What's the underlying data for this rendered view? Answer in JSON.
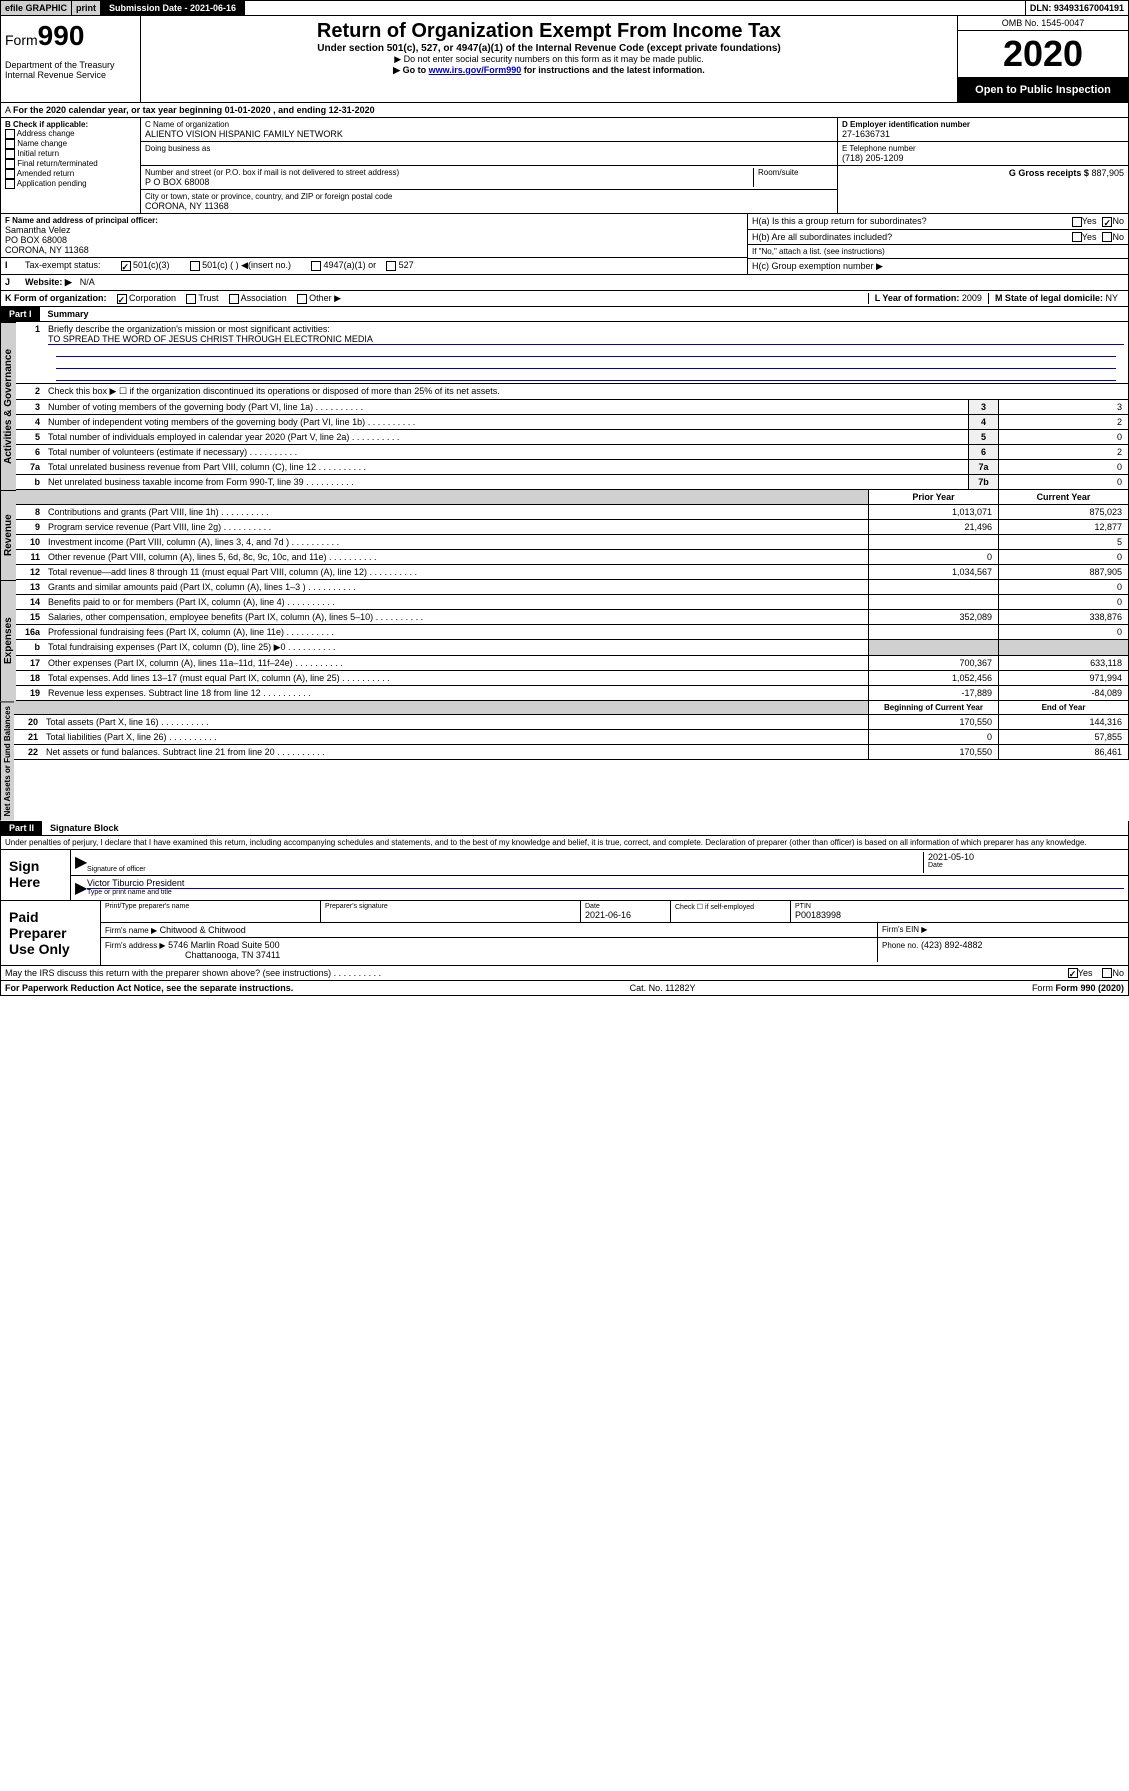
{
  "header": {
    "efile": "efile GRAPHIC",
    "print": "print",
    "submission_label": "Submission Date - 2021-06-16",
    "dln": "DLN: 93493167004191"
  },
  "title_box": {
    "form_label": "Form",
    "form_no": "990",
    "dept": "Department of the Treasury Internal Revenue Service",
    "main_title": "Return of Organization Exempt From Income Tax",
    "subtitle": "Under section 501(c), 527, or 4947(a)(1) of the Internal Revenue Code (except private foundations)",
    "arrow1": "▶ Do not enter social security numbers on this form as it may be made public.",
    "arrow2_pre": "▶ Go to ",
    "arrow2_link": "www.irs.gov/Form990",
    "arrow2_post": " for instructions and the latest information.",
    "omb": "OMB No. 1545-0047",
    "year": "2020",
    "open_public": "Open to Public Inspection"
  },
  "line_a": "For the 2020 calendar year, or tax year beginning 01-01-2020   , and ending 12-31-2020",
  "section_b": {
    "header": "B Check if applicable:",
    "items": [
      "Address change",
      "Name change",
      "Initial return",
      "Final return/terminated",
      "Amended return",
      "Application pending"
    ]
  },
  "section_c": {
    "name_label": "C Name of organization",
    "name": "ALIENTO VISION HISPANIC FAMILY NETWORK",
    "dba_label": "Doing business as",
    "addr_label": "Number and street (or P.O. box if mail is not delivered to street address)",
    "room_label": "Room/suite",
    "addr": "P O BOX 68008",
    "city_label": "City or town, state or province, country, and ZIP or foreign postal code",
    "city": "CORONA, NY  11368"
  },
  "section_d": {
    "label": "D Employer identification number",
    "ein": "27-1636731"
  },
  "section_e": {
    "label": "E Telephone number",
    "phone": "(718) 205-1209"
  },
  "section_g": {
    "label": "G Gross receipts $",
    "amount": "887,905"
  },
  "section_f": {
    "label": "F  Name and address of principal officer:",
    "name": "Samantha Velez",
    "addr1": "PO BOX 68008",
    "addr2": "CORONA, NY  11368"
  },
  "section_h": {
    "ha": "H(a)  Is this a group return for subordinates?",
    "hb": "H(b)  Are all subordinates included?",
    "hb_note": "If \"No,\" attach a list. (see instructions)",
    "hc": "H(c)  Group exemption number ▶",
    "yes": "Yes",
    "no": "No"
  },
  "section_i": {
    "label": "Tax-exempt status:",
    "opts": [
      "501(c)(3)",
      "501(c) (  ) ◀(insert no.)",
      "4947(a)(1) or",
      "527"
    ]
  },
  "section_j": {
    "label": "Website: ▶",
    "val": "N/A"
  },
  "section_k": {
    "label": "K Form of organization:",
    "opts": [
      "Corporation",
      "Trust",
      "Association",
      "Other ▶"
    ]
  },
  "section_l": {
    "label": "L Year of formation:",
    "val": "2009"
  },
  "section_m": {
    "label": "M State of legal domicile:",
    "val": "NY"
  },
  "part1": {
    "header": "Part I",
    "title": "Summary",
    "line1_label": "Briefly describe the organization's mission or most significant activities:",
    "line1_val": "TO SPREAD THE WORD OF JESUS CHRIST THROUGH ELECTRONIC MEDIA",
    "line2": "Check this box ▶ ☐  if the organization discontinued its operations or disposed of more than 25% of its net assets.",
    "gov_label": "Activities & Governance",
    "rev_label": "Revenue",
    "exp_label": "Expenses",
    "net_label": "Net Assets or Fund Balances",
    "prior_year": "Prior Year",
    "current_year": "Current Year",
    "begin_year": "Beginning of Current Year",
    "end_year": "End of Year",
    "rows_gov": [
      {
        "no": "3",
        "text": "Number of voting members of the governing body (Part VI, line 1a)",
        "box": "3",
        "val": "3"
      },
      {
        "no": "4",
        "text": "Number of independent voting members of the governing body (Part VI, line 1b)",
        "box": "4",
        "val": "2"
      },
      {
        "no": "5",
        "text": "Total number of individuals employed in calendar year 2020 (Part V, line 2a)",
        "box": "5",
        "val": "0"
      },
      {
        "no": "6",
        "text": "Total number of volunteers (estimate if necessary)",
        "box": "6",
        "val": "2"
      },
      {
        "no": "7a",
        "text": "Total unrelated business revenue from Part VIII, column (C), line 12",
        "box": "7a",
        "val": "0"
      },
      {
        "no": "b",
        "text": "Net unrelated business taxable income from Form 990-T, line 39",
        "box": "7b",
        "val": "0"
      }
    ],
    "rows_rev": [
      {
        "no": "8",
        "text": "Contributions and grants (Part VIII, line 1h)",
        "prior": "1,013,071",
        "curr": "875,023"
      },
      {
        "no": "9",
        "text": "Program service revenue (Part VIII, line 2g)",
        "prior": "21,496",
        "curr": "12,877"
      },
      {
        "no": "10",
        "text": "Investment income (Part VIII, column (A), lines 3, 4, and 7d )",
        "prior": "",
        "curr": "5"
      },
      {
        "no": "11",
        "text": "Other revenue (Part VIII, column (A), lines 5, 6d, 8c, 9c, 10c, and 11e)",
        "prior": "0",
        "curr": "0"
      },
      {
        "no": "12",
        "text": "Total revenue—add lines 8 through 11 (must equal Part VIII, column (A), line 12)",
        "prior": "1,034,567",
        "curr": "887,905"
      }
    ],
    "rows_exp": [
      {
        "no": "13",
        "text": "Grants and similar amounts paid (Part IX, column (A), lines 1–3 )",
        "prior": "",
        "curr": "0"
      },
      {
        "no": "14",
        "text": "Benefits paid to or for members (Part IX, column (A), line 4)",
        "prior": "",
        "curr": "0"
      },
      {
        "no": "15",
        "text": "Salaries, other compensation, employee benefits (Part IX, column (A), lines 5–10)",
        "prior": "352,089",
        "curr": "338,876"
      },
      {
        "no": "16a",
        "text": "Professional fundraising fees (Part IX, column (A), line 11e)",
        "prior": "",
        "curr": "0"
      },
      {
        "no": "b",
        "text": "Total fundraising expenses (Part IX, column (D), line 25) ▶0",
        "prior": "gray",
        "curr": "gray"
      },
      {
        "no": "17",
        "text": "Other expenses (Part IX, column (A), lines 11a–11d, 11f–24e)",
        "prior": "700,367",
        "curr": "633,118"
      },
      {
        "no": "18",
        "text": "Total expenses. Add lines 13–17 (must equal Part IX, column (A), line 25)",
        "prior": "1,052,456",
        "curr": "971,994"
      },
      {
        "no": "19",
        "text": "Revenue less expenses. Subtract line 18 from line 12",
        "prior": "-17,889",
        "curr": "-84,089"
      }
    ],
    "rows_net": [
      {
        "no": "20",
        "text": "Total assets (Part X, line 16)",
        "prior": "170,550",
        "curr": "144,316"
      },
      {
        "no": "21",
        "text": "Total liabilities (Part X, line 26)",
        "prior": "0",
        "curr": "57,855"
      },
      {
        "no": "22",
        "text": "Net assets or fund balances. Subtract line 21 from line 20",
        "prior": "170,550",
        "curr": "86,461"
      }
    ]
  },
  "part2": {
    "header": "Part II",
    "title": "Signature Block",
    "perjury": "Under penalties of perjury, I declare that I have examined this return, including accompanying schedules and statements, and to the best of my knowledge and belief, it is true, correct, and complete. Declaration of preparer (other than officer) is based on all information of which preparer has any knowledge.",
    "sign_here": "Sign Here",
    "sig_officer": "Signature of officer",
    "sig_date": "2021-05-10",
    "date_label": "Date",
    "officer_name": "Victor Tiburcio  President",
    "type_name": "Type or print name and title",
    "paid": "Paid Preparer Use Only",
    "prep_name_label": "Print/Type preparer's name",
    "prep_sig_label": "Preparer's signature",
    "prep_date_label": "Date",
    "prep_date": "2021-06-16",
    "check_self": "Check ☐ if self-employed",
    "ptin_label": "PTIN",
    "ptin": "P00183998",
    "firm_name_label": "Firm's name    ▶",
    "firm_name": "Chitwood & Chitwood",
    "firm_ein_label": "Firm's EIN ▶",
    "firm_addr_label": "Firm's address ▶",
    "firm_addr1": "5746 Marlin Road Suite 500",
    "firm_addr2": "Chattanooga, TN  37411",
    "phone_label": "Phone no.",
    "phone": "(423) 892-4882",
    "discuss": "May the IRS discuss this return with the preparer shown above? (see instructions)",
    "yes": "Yes",
    "no": "No"
  },
  "footer": {
    "paperwork": "For Paperwork Reduction Act Notice, see the separate instructions.",
    "cat": "Cat. No. 11282Y",
    "form": "Form 990 (2020)"
  }
}
